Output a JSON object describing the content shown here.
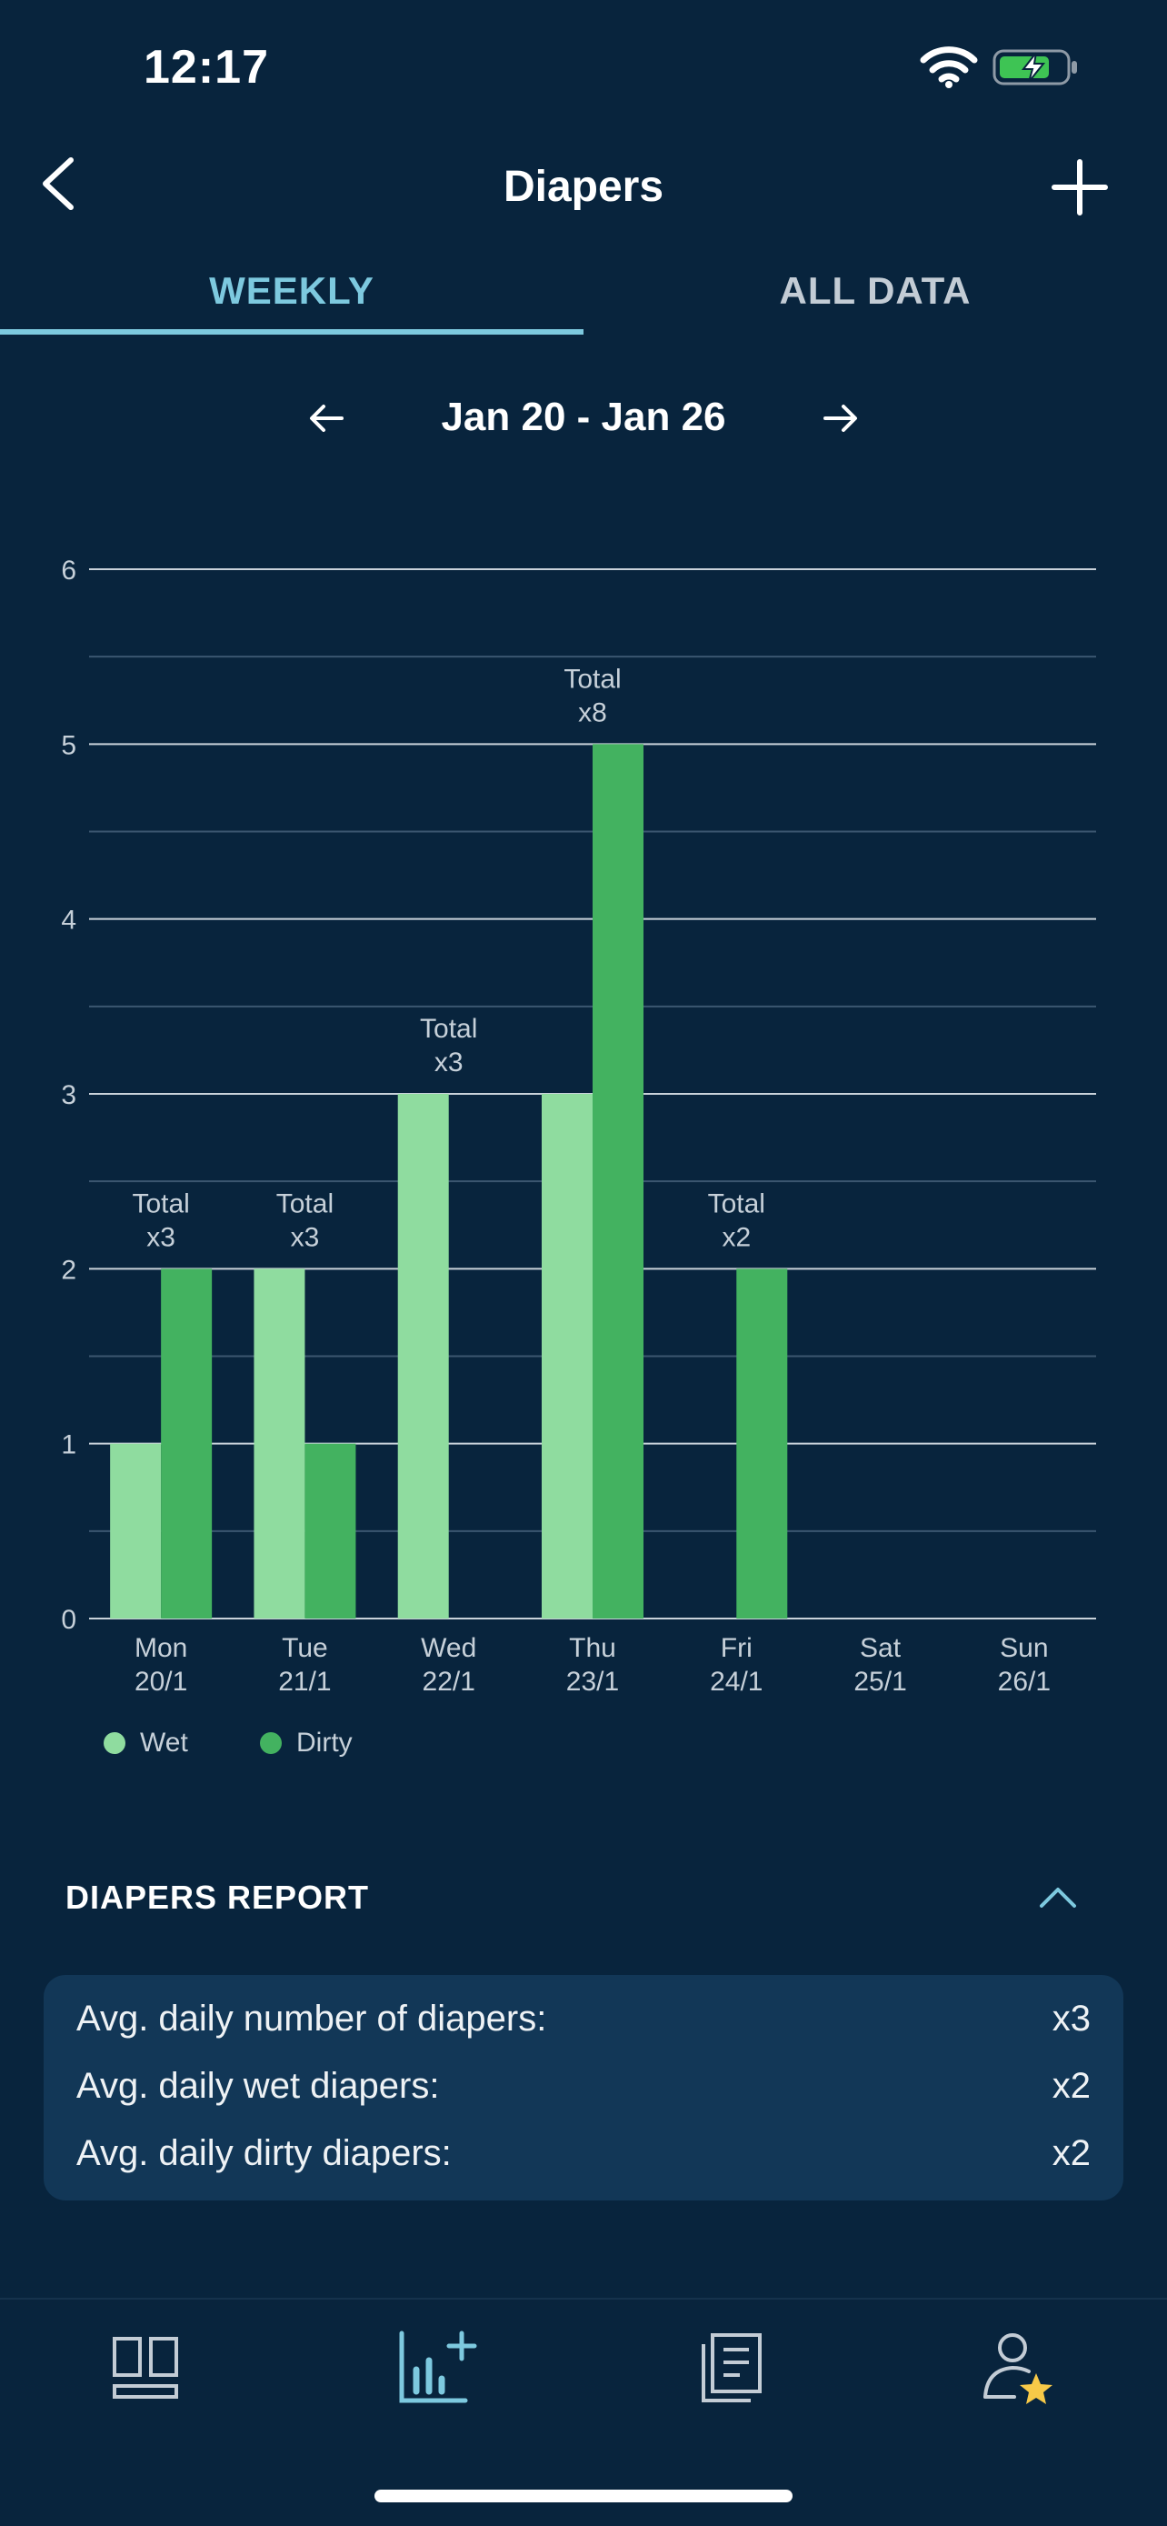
{
  "status_bar": {
    "time": "12:17"
  },
  "header": {
    "title": "Diapers"
  },
  "tabs": [
    {
      "label": "WEEKLY",
      "active": true
    },
    {
      "label": "ALL DATA",
      "active": false
    }
  ],
  "week_nav": {
    "label": "Jan 20 - Jan 26"
  },
  "chart_data": {
    "type": "bar",
    "categories": [
      "Mon\n20/1",
      "Tue\n21/1",
      "Wed\n22/1",
      "Thu\n23/1",
      "Fri\n24/1",
      "Sat\n25/1",
      "Sun\n26/1"
    ],
    "series": [
      {
        "name": "Wet",
        "values": [
          1,
          2,
          3,
          3,
          0,
          0,
          0
        ],
        "color": "#8fdc9f"
      },
      {
        "name": "Dirty",
        "values": [
          2,
          1,
          0,
          5,
          2,
          0,
          0
        ],
        "color": "#43b260"
      }
    ],
    "totals": [
      "Total\nx3",
      "Total\nx3",
      "Total\nx3",
      "Total\nx8",
      "Total\nx2",
      "",
      ""
    ],
    "ylim": [
      0,
      6
    ],
    "yticks": [
      0,
      1,
      2,
      3,
      4,
      5,
      6
    ],
    "grid": true,
    "legend": "bottom-left",
    "title": "",
    "xlabel": "",
    "ylabel": ""
  },
  "legend": [
    {
      "label": "Wet",
      "color": "#8fdc9f"
    },
    {
      "label": "Dirty",
      "color": "#43b260"
    }
  ],
  "report": {
    "title": "DIAPERS REPORT",
    "rows": [
      {
        "label": "Avg. daily number of diapers:",
        "value": "x3"
      },
      {
        "label": "Avg. daily wet diapers:",
        "value": "x2"
      },
      {
        "label": "Avg. daily dirty diapers:",
        "value": "x2"
      }
    ]
  },
  "bottom_nav": [
    {
      "icon": "dashboard-icon",
      "active": false
    },
    {
      "icon": "add-chart-icon",
      "active": true
    },
    {
      "icon": "journal-icon",
      "active": false
    },
    {
      "icon": "profile-star-icon",
      "active": false
    }
  ],
  "colors": {
    "background": "#08243d",
    "accent": "#7dc9df",
    "card": "#123757"
  }
}
